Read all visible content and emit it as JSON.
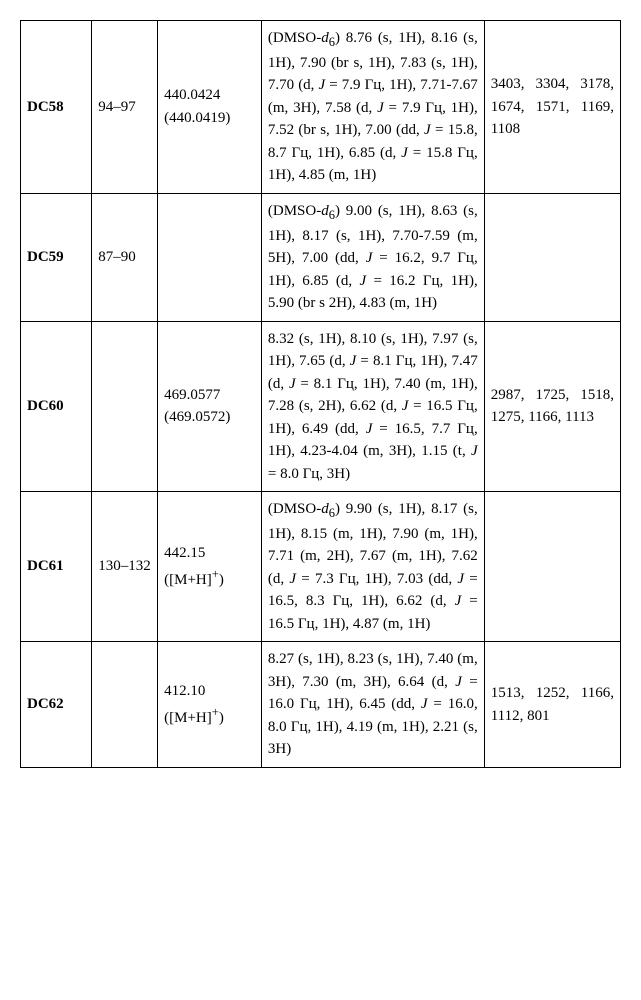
{
  "table": {
    "columns": [
      "id",
      "range",
      "mass",
      "nmr",
      "ir"
    ],
    "col_widths_pct": [
      11,
      10,
      17,
      39,
      23
    ],
    "border_color": "#000000",
    "background_color": "#ffffff",
    "font_family": "Times New Roman",
    "font_size_pt": 12,
    "rows": [
      {
        "id": "DC58",
        "range": "94–97",
        "mass": "440.0424 (440.0419)",
        "nmr": "(DMSO-<i>d</i><sub>6</sub>) 8.76 (s, 1H), 8.16 (s, 1H), 7.90 (br s, 1H), 7.83 (s, 1H), 7.70 (d, <i>J</i> = 7.9 Гц, 1H), 7.71-7.67 (m, 3H), 7.58 (d, <i>J</i> = 7.9 Гц, 1H), 7.52 (br s, 1H), 7.00 (dd, <i>J</i> = 15.8, 8.7 Гц, 1H), 6.85 (d, <i>J</i> = 15.8 Гц, 1H), 4.85 (m, 1H)",
        "ir": "3403, 3304, 3178, 1674, 1571, 1169, 1108"
      },
      {
        "id": "DC59",
        "range": "87–90",
        "mass": "",
        "nmr": "(DMSO-<i>d</i><sub>6</sub>) 9.00 (s, 1H), 8.63 (s, 1H), 8.17 (s, 1H), 7.70-7.59 (m, 5H), 7.00 (dd, <i>J</i> = 16.2, 9.7 Гц, 1H), 6.85 (d, <i>J</i> = 16.2 Гц, 1H), 5.90 (br s 2H), 4.83 (m, 1H)",
        "ir": ""
      },
      {
        "id": "DC60",
        "range": "",
        "mass": "469.0577 (469.0572)",
        "nmr": "8.32 (s, 1H), 8.10 (s, 1H), 7.97 (s, 1H), 7.65 (d, <i>J</i> = 8.1 Гц, 1H), 7.47 (d, <i>J</i> = 8.1 Гц, 1H), 7.40 (m, 1H), 7.28 (s, 2H), 6.62 (d, <i>J</i> = 16.5 Гц, 1H), 6.49 (dd, <i>J</i> = 16.5, 7.7 Гц, 1H), 4.23-4.04 (m, 3H), 1.15 (t, <i>J</i> = 8.0 Гц, 3H)",
        "ir": "2987, 1725, 1518, 1275, 1166, 1113"
      },
      {
        "id": "DC61",
        "range": "130–132",
        "mass": "442.15 ([M+H]<sup>+</sup>)",
        "nmr": "(DMSO-<i>d</i><sub>6</sub>) 9.90 (s, 1H), 8.17 (s, 1H), 8.15 (m, 1H), 7.90 (m, 1H), 7.71 (m, 2H), 7.67 (m, 1H), 7.62 (d, <i>J</i> = 7.3 Гц, 1H), 7.03 (dd, <i>J</i> = 16.5, 8.3 Гц, 1H), 6.62 (d, <i>J</i> = 16.5 Гц, 1H), 4.87 (m, 1H)",
        "ir": ""
      },
      {
        "id": "DC62",
        "range": "",
        "mass": "412.10 ([M+H]<sup>+</sup>)",
        "nmr": "8.27 (s, 1H), 8.23 (s, 1H), 7.40 (m, 3H), 7.30 (m, 3H), 6.64 (d, <i>J</i> = 16.0 Гц, 1H), 6.45 (dd, <i>J</i> = 16.0, 8.0 Гц, 1H), 4.19 (m, 1H), 2.21 (s, 3H)",
        "ir": "1513, 1252, 1166, 1112, 801"
      }
    ]
  }
}
